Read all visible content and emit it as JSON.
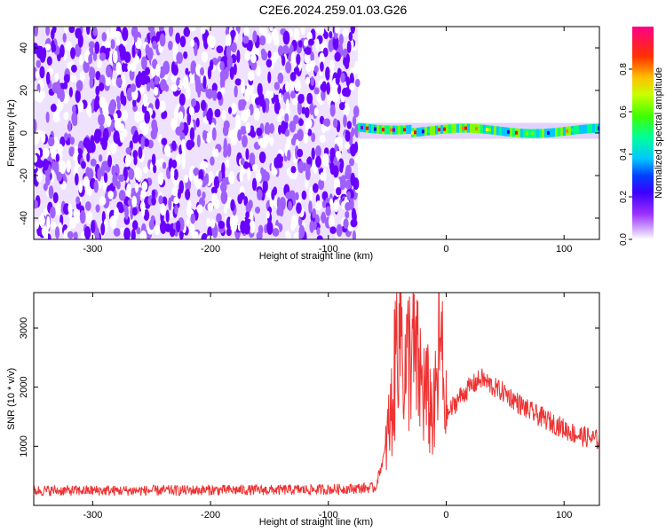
{
  "title": "C2E6.2024.259.01.03.G26",
  "colors": {
    "snr_line": "#ee3333",
    "axes": "#000000",
    "background": "#ffffff",
    "colormap": [
      "#ffffff",
      "#e8d9ff",
      "#9b5cff",
      "#6a00ff",
      "#0000ff",
      "#00c8ff",
      "#00ff80",
      "#80ff00",
      "#ffff00",
      "#ff8000",
      "#ff0000",
      "#ff0066"
    ]
  },
  "chart_data": [
    {
      "type": "heatmap",
      "xlabel": "Height of straight line (km)",
      "ylabel": "Frequency (Hz)",
      "xlim": [
        -350,
        130
      ],
      "ylim": [
        -50,
        50
      ],
      "x_ticks": [
        -300,
        -200,
        -100,
        0,
        100
      ],
      "y_ticks": [
        -40,
        -20,
        0,
        20,
        40
      ],
      "grid": false,
      "colorbar": {
        "label": "Normalized spectral amplitude",
        "range": [
          0,
          1
        ],
        "ticks": [
          0.0,
          0.2,
          0.4,
          0.6,
          0.8
        ]
      },
      "regions": [
        {
          "x_range": [
            -350,
            -75
          ],
          "description_level": "noise",
          "amplitude_approx": [
            0.0,
            0.15
          ]
        },
        {
          "x_range": [
            -75,
            130
          ],
          "signal_frequency_hz": 1,
          "amplitude_approx": [
            0.3,
            1.0
          ]
        }
      ]
    },
    {
      "type": "line",
      "xlabel": "Height of straight line (km)",
      "ylabel": "SNR (10 * v/v)",
      "xlim": [
        -350,
        130
      ],
      "ylim": [
        0,
        3600
      ],
      "x_ticks": [
        -300,
        -200,
        -100,
        0,
        100
      ],
      "y_ticks": [
        1000,
        2000,
        3000
      ],
      "grid": false,
      "series": [
        {
          "x": [
            -350,
            -300,
            -250,
            -200,
            -150,
            -100,
            -60,
            -52,
            -45,
            -40,
            -35,
            -30,
            -20,
            -10,
            -5,
            0,
            10,
            20,
            30,
            40,
            50,
            60,
            70,
            80,
            90,
            100,
            110,
            120,
            130
          ],
          "y": [
            250,
            250,
            250,
            260,
            260,
            270,
            300,
            900,
            1800,
            3500,
            2200,
            2700,
            2000,
            1500,
            2800,
            1500,
            1800,
            2000,
            2150,
            2000,
            1900,
            1750,
            1600,
            1500,
            1400,
            1300,
            1200,
            1150,
            1100
          ]
        }
      ]
    }
  ]
}
